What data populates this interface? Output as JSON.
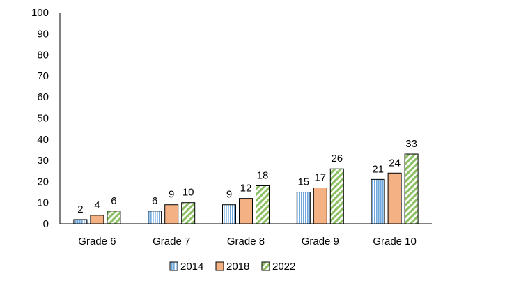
{
  "chart_data": {
    "type": "bar",
    "categories": [
      "Grade 6",
      "Grade 7",
      "Grade 8",
      "Grade 9",
      "Grade 10"
    ],
    "series": [
      {
        "name": "2014",
        "values": [
          2,
          6,
          9,
          15,
          21
        ],
        "color": "#9dc3e6",
        "pattern": "vertical-stripes"
      },
      {
        "name": "2018",
        "values": [
          4,
          9,
          12,
          17,
          24
        ],
        "color": "#f4b183",
        "pattern": "solid"
      },
      {
        "name": "2022",
        "values": [
          6,
          10,
          18,
          26,
          33
        ],
        "color": "#a9d18e",
        "pattern": "diagonal-stripes"
      }
    ],
    "ylim": [
      0,
      100
    ],
    "yticks": [
      "0",
      "10",
      "20",
      "30",
      "40",
      "50",
      "60",
      "70",
      "80",
      "90",
      "100"
    ],
    "data_labels": [
      [
        "2",
        "6",
        "9",
        "15",
        "21"
      ],
      [
        "4",
        "9",
        "12",
        "17",
        "24"
      ],
      [
        "6",
        "10",
        "18",
        "26",
        "33"
      ]
    ],
    "legend_position": "bottom",
    "grid": false,
    "title": "",
    "xlabel": "",
    "ylabel": ""
  }
}
